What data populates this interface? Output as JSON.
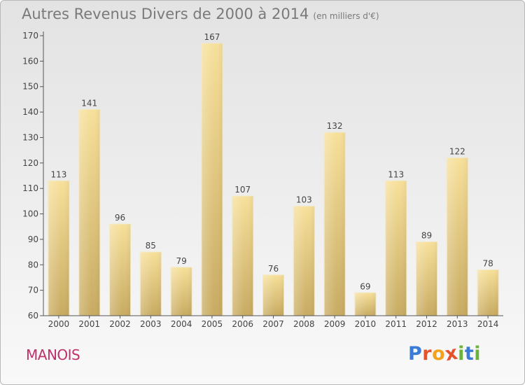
{
  "chart_data": {
    "type": "bar",
    "title": "Autres Revenus Divers de 2000 à 2014",
    "subtitle": "(en milliers d'€)",
    "categories": [
      "2000",
      "2001",
      "2002",
      "2003",
      "2004",
      "2005",
      "2006",
      "2007",
      "2008",
      "2009",
      "2010",
      "2011",
      "2012",
      "2013",
      "2014"
    ],
    "values": [
      113,
      141,
      96,
      85,
      79,
      167,
      107,
      76,
      103,
      132,
      69,
      113,
      89,
      122,
      78
    ],
    "ylim": [
      60,
      170
    ],
    "yticks": [
      60,
      70,
      80,
      90,
      100,
      110,
      120,
      130,
      140,
      150,
      160,
      170
    ],
    "grid": false,
    "bar_color": "#e9cf86"
  },
  "location": "MANOIS",
  "brand": {
    "letters": [
      "P",
      "r",
      "o",
      "x",
      "i",
      "t",
      "i"
    ],
    "colors": [
      "#3a7bd5",
      "#e5532d",
      "#f2a31b",
      "#e5532d",
      "#6bb33a",
      "#3a7bd5",
      "#6bb33a"
    ]
  }
}
